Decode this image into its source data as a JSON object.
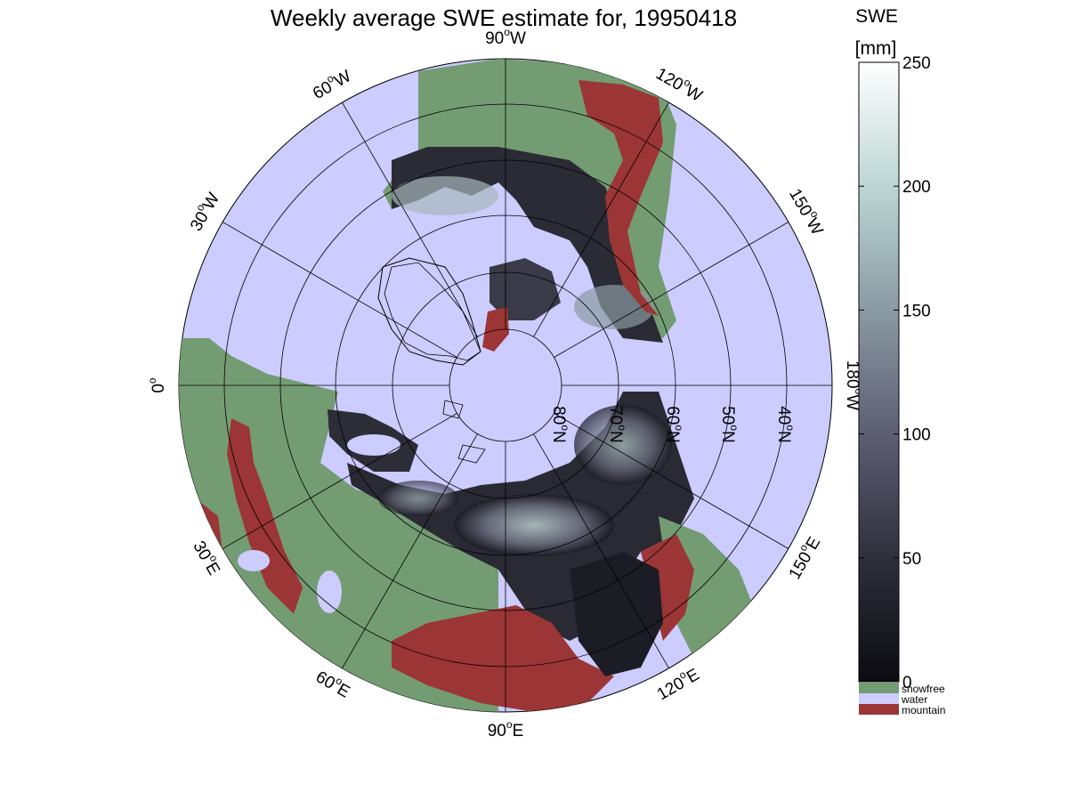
{
  "title": "Weekly average SWE estimate for, 19950418",
  "colorbar": {
    "label_line1": "SWE",
    "label_line2": "[mm]",
    "ticks": [
      "0",
      "50",
      "100",
      "150",
      "200",
      "250"
    ],
    "tick_values": [
      0,
      50,
      100,
      150,
      200,
      250
    ],
    "range": [
      0,
      250
    ],
    "gradient_stops": [
      "#0b0b10",
      "#2f2f3c",
      "#5d5e73",
      "#8a9aa3",
      "#bdd6d4",
      "#ffffff"
    ]
  },
  "legend": [
    {
      "label": "snowfree",
      "color": "#739c72"
    },
    {
      "label": "water",
      "color": "#ccccff"
    },
    {
      "label": "mountain",
      "color": "#9c3535"
    }
  ],
  "map": {
    "projection": "north polar stereographic",
    "water_color": "#ccccff",
    "land_color": "#739c72",
    "mountain_color": "#9c3535",
    "latitude_labels": [
      "80",
      "70",
      "60",
      "50",
      "40"
    ],
    "longitude_labels": [
      {
        "deg": "90",
        "hem": "W"
      },
      {
        "deg": "120",
        "hem": "W"
      },
      {
        "deg": "150",
        "hem": "W"
      },
      {
        "deg": "180",
        "hem": "W"
      },
      {
        "deg": "150",
        "hem": "E"
      },
      {
        "deg": "120",
        "hem": "E"
      },
      {
        "deg": "90",
        "hem": "E"
      },
      {
        "deg": "60",
        "hem": "E"
      },
      {
        "deg": "30",
        "hem": "E"
      },
      {
        "deg": "0",
        "hem": ""
      },
      {
        "deg": "30",
        "hem": "W"
      },
      {
        "deg": "60",
        "hem": "W"
      }
    ],
    "north_suffix": "N",
    "degree_symbol": "o"
  }
}
